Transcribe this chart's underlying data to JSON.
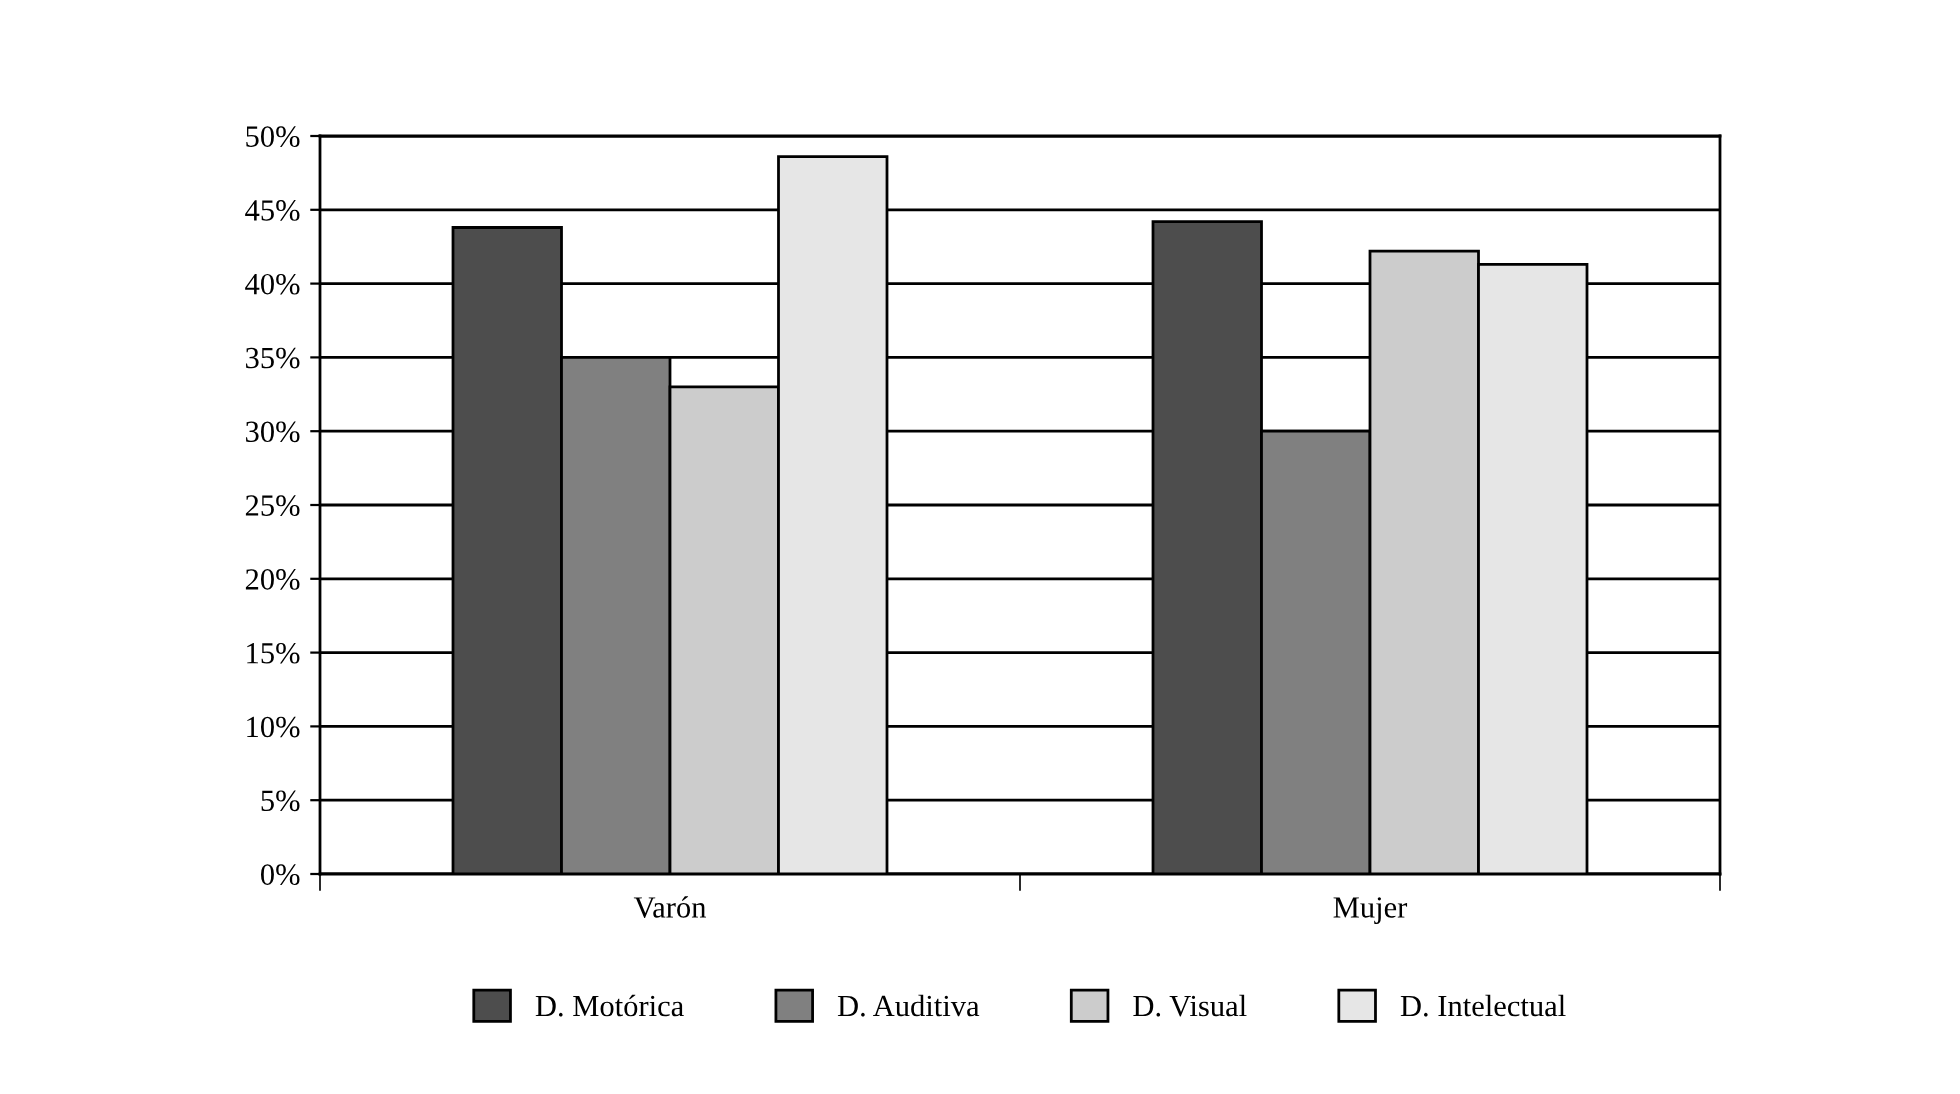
{
  "chart_data": {
    "type": "bar",
    "categories": [
      "Varón",
      "Mujer"
    ],
    "series": [
      {
        "name": "D. Motórica",
        "color": "#4d4d4d",
        "values": [
          43.8,
          44.2
        ]
      },
      {
        "name": "D. Auditiva",
        "color": "#808080",
        "values": [
          35,
          30
        ]
      },
      {
        "name": "D. Visual",
        "color": "#cccccc",
        "values": [
          33,
          42.2
        ]
      },
      {
        "name": "D. Intelectual",
        "color": "#e6e6e6",
        "values": [
          48.6,
          41.3
        ]
      }
    ],
    "ylim": [
      0,
      50
    ],
    "yticks": [
      {
        "value": 0,
        "label": "0%"
      },
      {
        "value": 5,
        "label": "5%"
      },
      {
        "value": 10,
        "label": "10%"
      },
      {
        "value": 15,
        "label": "15%"
      },
      {
        "value": 20,
        "label": "20%"
      },
      {
        "value": 25,
        "label": "25%"
      },
      {
        "value": 30,
        "label": "30%"
      },
      {
        "value": 35,
        "label": "35%"
      },
      {
        "value": 40,
        "label": "40%"
      },
      {
        "value": 45,
        "label": "45%"
      },
      {
        "value": 50,
        "label": "50%"
      }
    ],
    "grid": "y",
    "legend": "bottom"
  }
}
